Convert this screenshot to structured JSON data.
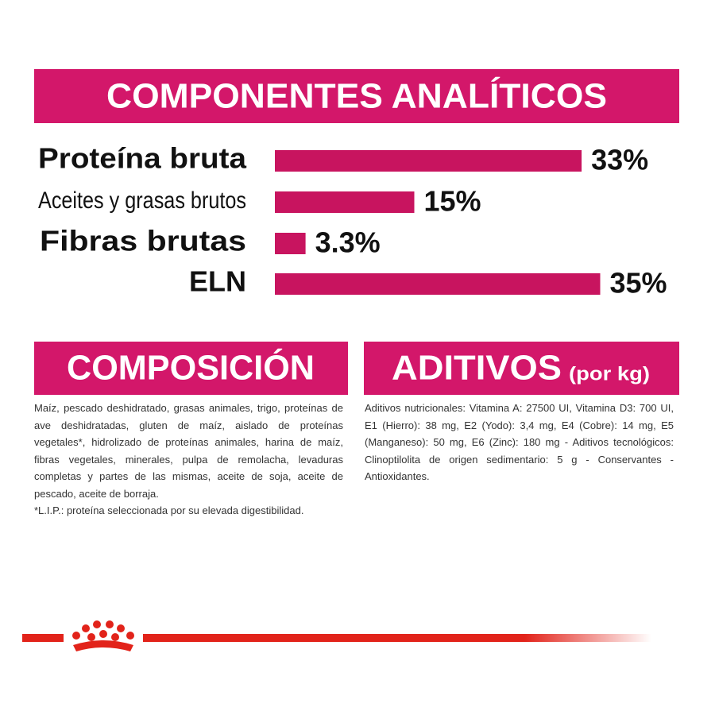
{
  "chart_data": {
    "type": "bar",
    "title": "COMPONENTES ANALÍTICOS",
    "categories": [
      "Proteína bruta",
      "Aceites y grasas brutos",
      "Fibras brutas",
      "ELN"
    ],
    "values": [
      33,
      15,
      3.3,
      35
    ],
    "value_labels": [
      "33%",
      "15%",
      "3.3%",
      "35%"
    ],
    "color": "#c8145f"
  },
  "composition": {
    "title": "COMPOSICIÓN",
    "paragraphs": [
      "Maíz, pescado deshidratado, grasas animales, trigo, proteínas de ave deshidratadas, gluten de maíz, aislado de proteínas vegetales*, hidrolizado de proteínas animales, harina de maíz, fibras vegetales, minerales, pulpa de remolacha, levaduras completas y partes de las mismas, aceite de soja, aceite de pescado, aceite de borraja.",
      "*L.I.P.: proteína seleccionada por su elevada digestibilidad."
    ]
  },
  "additives": {
    "title": "ADITIVOS",
    "subtitle": "(por kg)",
    "text": "Aditivos nutricionales: Vitamina A: 27500 UI, Vitamina D3: 700 UI, E1 (Hierro): 38 mg, E2 (Yodo): 3,4 mg, E4 (Cobre): 14 mg, E5 (Manganeso): 50 mg, E6 (Zinc): 180 mg - Aditivos tecnológicos: Clinoptilolita de origen sedimentario: 5 g - Conservantes - Antioxidantes."
  }
}
